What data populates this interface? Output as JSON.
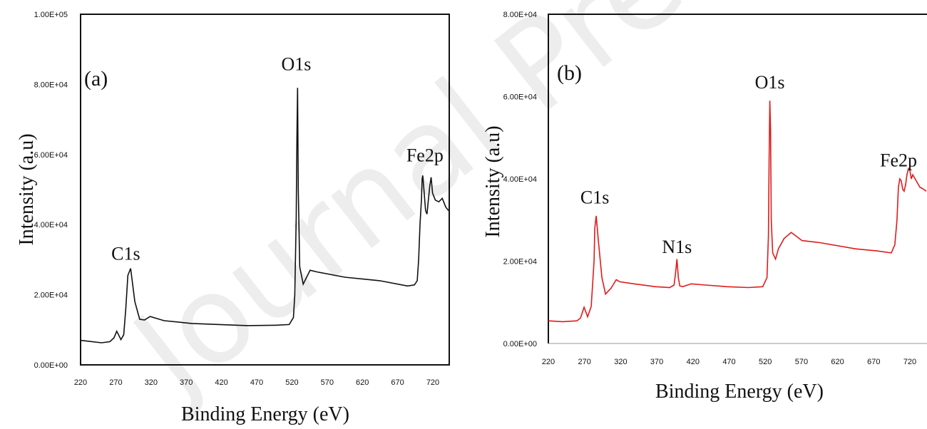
{
  "watermark": "Journal Pre-proof",
  "chart_data": [
    {
      "type": "line",
      "panel_label": "(a)",
      "ylabel": "Intensity (a.u)",
      "xlabel": "Binding Energy (eV)",
      "xlim": [
        220,
        750
      ],
      "ylim": [
        0,
        100000
      ],
      "x_ticks": [
        "220",
        "270",
        "320",
        "370",
        "420",
        "470",
        "520",
        "570",
        "620",
        "670",
        "720"
      ],
      "y_ticks": [
        "0.00E+00",
        "2.00E+04",
        "4.00E+04",
        "6.00E+04",
        "8.00E+04",
        "1.00E+05"
      ],
      "line_color": "#111111",
      "annotations": [
        {
          "text": "C1s",
          "x": 285,
          "y": 30000
        },
        {
          "text": "O1s",
          "x": 530,
          "y": 84000
        },
        {
          "text": "Fe2p",
          "x": 715,
          "y": 58000
        }
      ],
      "series": [
        {
          "x": [
            220,
            250,
            262,
            268,
            272,
            278,
            282,
            285,
            288,
            292,
            298,
            305,
            312,
            320,
            340,
            380,
            420,
            460,
            500,
            520,
            526,
            528,
            530,
            531,
            532,
            533,
            535,
            540,
            545,
            550,
            560,
            600,
            650,
            690,
            700,
            704,
            706,
            708,
            710,
            711,
            712,
            714,
            716,
            718,
            720,
            722,
            724,
            726,
            730,
            735,
            740,
            745,
            750
          ],
          "y": [
            7000,
            6300,
            6600,
            7700,
            9600,
            7200,
            8600,
            16000,
            25500,
            27500,
            18000,
            13000,
            12800,
            13800,
            12600,
            11800,
            11500,
            11200,
            11300,
            11500,
            13500,
            20000,
            42000,
            65000,
            79000,
            50000,
            28000,
            23000,
            25000,
            27000,
            26500,
            25000,
            24000,
            22500,
            22800,
            24000,
            30000,
            40000,
            47000,
            53000,
            54000,
            49000,
            44000,
            43000,
            47000,
            51000,
            53500,
            49000,
            47000,
            46500,
            47500,
            45000,
            44000
          ]
        }
      ]
    },
    {
      "type": "line",
      "panel_label": "(b)",
      "ylabel": "Intensity (a.u)",
      "xlabel": "Binding Energy (eV)",
      "xlim": [
        220,
        750
      ],
      "ylim": [
        0,
        80000
      ],
      "x_ticks": [
        "220",
        "270",
        "320",
        "370",
        "420",
        "470",
        "520",
        "570",
        "620",
        "670",
        "720"
      ],
      "y_ticks": [
        "0.00E+00",
        "2.00E+04",
        "4.00E+04",
        "6.00E+04",
        "8.00E+04"
      ],
      "line_color": "#e01b1b",
      "annotations": [
        {
          "text": "C1s",
          "x": 285,
          "y": 34000
        },
        {
          "text": "N1s",
          "x": 400,
          "y": 22000
        },
        {
          "text": "O1s",
          "x": 530,
          "y": 62000
        },
        {
          "text": "Fe2p",
          "x": 730,
          "y": 43000
        }
      ],
      "series": [
        {
          "x": [
            220,
            240,
            260,
            265,
            270,
            275,
            280,
            284,
            285,
            287,
            290,
            295,
            300,
            308,
            315,
            320,
            340,
            370,
            390,
            396,
            398,
            400,
            402,
            404,
            408,
            420,
            440,
            470,
            500,
            520,
            526,
            528,
            529,
            530,
            531,
            532,
            534,
            538,
            542,
            550,
            560,
            575,
            600,
            650,
            680,
            700,
            705,
            708,
            710,
            712,
            714,
            716,
            718,
            720,
            722,
            724,
            726,
            728,
            730,
            735,
            740,
            745,
            750
          ],
          "y": [
            5500,
            5300,
            5500,
            6200,
            8800,
            6500,
            9000,
            20000,
            28000,
            31000,
            25000,
            16000,
            12000,
            13500,
            15500,
            15000,
            14500,
            13800,
            13600,
            14200,
            17000,
            20500,
            16000,
            14000,
            13800,
            14500,
            14200,
            13800,
            13600,
            13800,
            16000,
            26000,
            45000,
            59000,
            52000,
            30000,
            22000,
            20500,
            23000,
            25500,
            27000,
            25000,
            24500,
            23000,
            22500,
            22000,
            24000,
            30000,
            38000,
            40000,
            39500,
            37500,
            37000,
            38500,
            41000,
            42500,
            42000,
            40000,
            41000,
            39500,
            38000,
            37500,
            37000
          ]
        }
      ]
    }
  ]
}
